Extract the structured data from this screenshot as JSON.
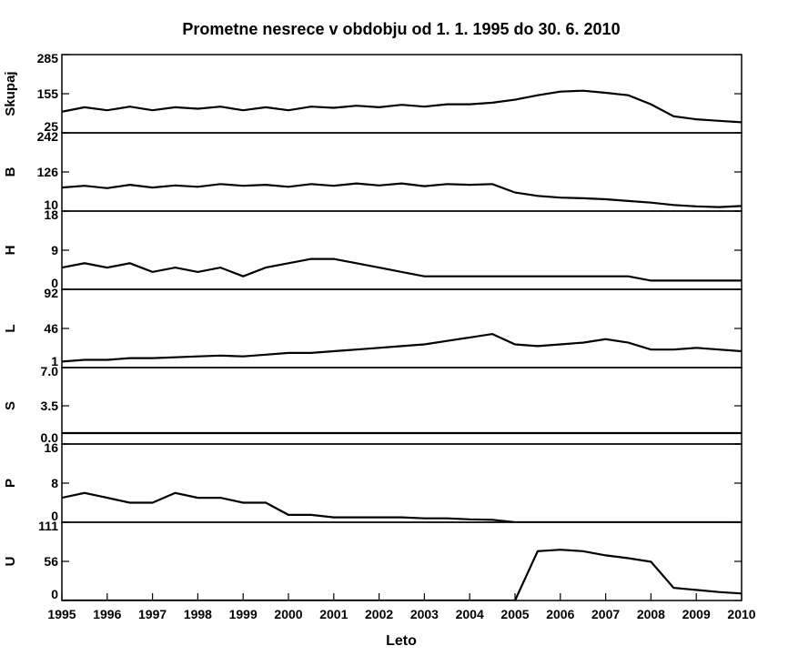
{
  "chart_data": {
    "type": "line",
    "title": "Prometne nesrece v obdobju od 1. 1. 1995 do 30. 6. 2010",
    "xlabel": "Leto",
    "xlim": [
      1995,
      2010
    ],
    "x_ticks": [
      "1995",
      "1996",
      "1997",
      "1998",
      "1999",
      "2000",
      "2001",
      "2002",
      "2003",
      "2004",
      "2005",
      "2006",
      "2007",
      "2008",
      "2009",
      "2010"
    ],
    "x": [
      1995.0,
      1995.5,
      1996.0,
      1996.5,
      1997.0,
      1997.5,
      1998.0,
      1998.5,
      1999.0,
      1999.5,
      2000.0,
      2000.5,
      2001.0,
      2001.5,
      2002.0,
      2002.5,
      2003.0,
      2003.5,
      2004.0,
      2004.5,
      2005.0,
      2005.5,
      2006.0,
      2006.5,
      2007.0,
      2007.5,
      2008.0,
      2008.5,
      2009.0,
      2009.5,
      2010.0
    ],
    "series": [
      {
        "name": "Skupaj",
        "ylim": [
          25,
          285
        ],
        "ticks": [
          "285",
          "155",
          "25"
        ],
        "values": [
          95,
          110,
          100,
          112,
          100,
          110,
          105,
          112,
          100,
          110,
          100,
          112,
          108,
          115,
          110,
          118,
          112,
          120,
          120,
          125,
          135,
          150,
          162,
          165,
          158,
          150,
          120,
          80,
          70,
          65,
          60
        ]
      },
      {
        "name": "B",
        "ylim": [
          10,
          242
        ],
        "ticks": [
          "242",
          "126",
          "10"
        ],
        "values": [
          80,
          85,
          78,
          88,
          80,
          86,
          82,
          90,
          85,
          88,
          82,
          90,
          85,
          92,
          86,
          92,
          84,
          90,
          88,
          90,
          65,
          55,
          50,
          48,
          45,
          40,
          35,
          28,
          24,
          22,
          25
        ]
      },
      {
        "name": "H",
        "ylim": [
          0,
          18
        ],
        "ticks": [
          "18",
          "9",
          "0"
        ],
        "values": [
          5,
          6,
          5,
          6,
          4,
          5,
          4,
          5,
          3,
          5,
          6,
          7,
          7,
          6,
          5,
          4,
          3,
          3,
          3,
          3,
          3,
          3,
          3,
          3,
          3,
          3,
          2,
          2,
          2,
          2,
          2
        ]
      },
      {
        "name": "L",
        "ylim": [
          1,
          92
        ],
        "ticks": [
          "92",
          "46",
          "1"
        ],
        "values": [
          8,
          10,
          10,
          12,
          12,
          13,
          14,
          15,
          14,
          16,
          18,
          18,
          20,
          22,
          24,
          26,
          28,
          32,
          36,
          40,
          28,
          26,
          28,
          30,
          34,
          30,
          22,
          22,
          24,
          22,
          20
        ]
      },
      {
        "name": "S",
        "ylim": [
          0,
          7
        ],
        "ticks": [
          "7.0",
          "3.5",
          "0.0"
        ],
        "values": [
          1,
          1,
          1,
          1,
          1,
          1,
          1,
          1,
          1,
          1,
          1,
          1,
          1,
          1,
          1,
          1,
          1,
          1,
          1,
          1,
          1,
          1,
          1,
          1,
          1,
          1,
          1,
          1,
          1,
          1,
          1
        ]
      },
      {
        "name": "P",
        "ylim": [
          0,
          16
        ],
        "ticks": [
          "16",
          "8",
          "0"
        ],
        "values": [
          5,
          6,
          5,
          4,
          4,
          6,
          5,
          5,
          4,
          4,
          1.5,
          1.5,
          1,
          1,
          1,
          1,
          0.8,
          0.8,
          0.6,
          0.5,
          0,
          0,
          0,
          0,
          0,
          0,
          0,
          0,
          0,
          0,
          0
        ]
      },
      {
        "name": "U",
        "ylim": [
          0,
          111
        ],
        "ticks": [
          "111",
          "56",
          "0"
        ],
        "values": [
          0,
          0,
          0,
          0,
          0,
          0,
          0,
          0,
          0,
          0,
          0,
          0,
          0,
          0,
          0,
          0,
          0,
          0,
          0,
          0,
          0,
          70,
          72,
          70,
          64,
          60,
          55,
          18,
          15,
          12,
          10
        ]
      }
    ]
  }
}
